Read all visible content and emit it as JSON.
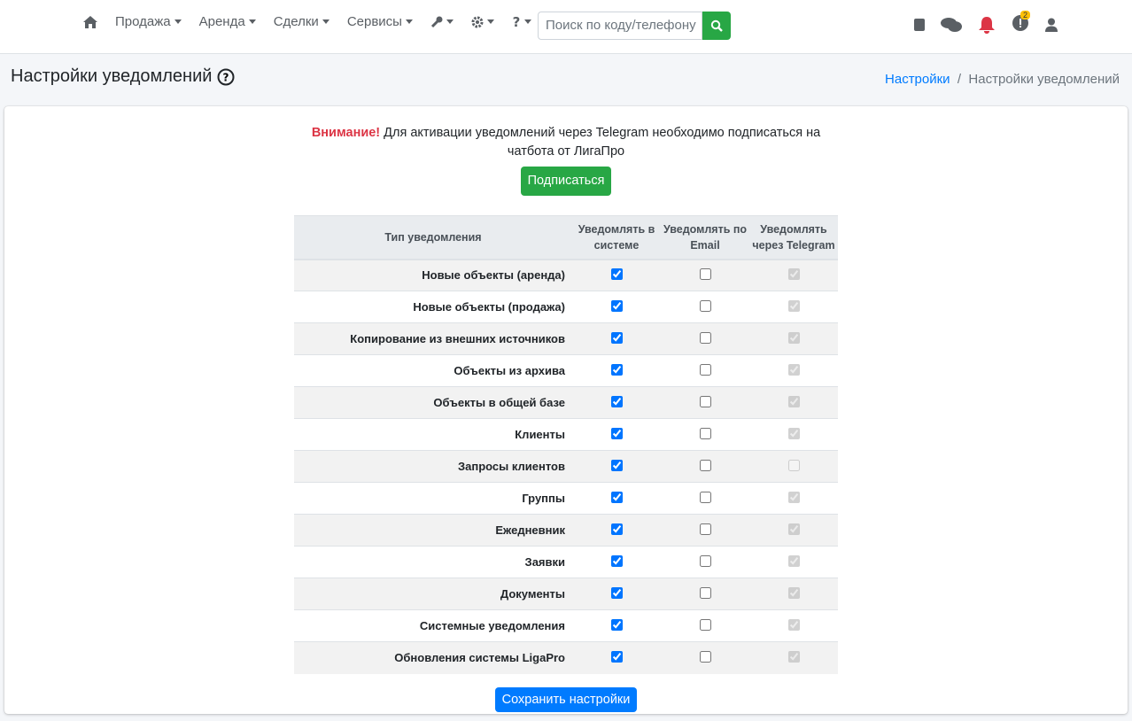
{
  "nav": {
    "items": [
      "Продажа",
      "Аренда",
      "Сделки",
      "Сервисы"
    ],
    "search_placeholder": "Поиск по коду/телефону",
    "badge": "2"
  },
  "header": {
    "title": "Настройки уведомлений",
    "breadcrumb": [
      "Настройки",
      "Настройки уведомлений"
    ]
  },
  "notice": {
    "strong": "Внимание!",
    "text": "Для активации уведомлений через Telegram необходимо подписаться на чатбота от ЛигаПро",
    "button": "Подписаться"
  },
  "table": {
    "columns": [
      "Тип уведомления",
      "Уведомлять в системе",
      "Уведомлять по Email",
      "Уведомлять через Telegram"
    ],
    "rows": [
      {
        "label": "Новые объекты (аренда)",
        "system": true,
        "email": false,
        "telegram": true
      },
      {
        "label": "Новые объекты (продажа)",
        "system": true,
        "email": false,
        "telegram": true
      },
      {
        "label": "Копирование из внешних источников",
        "system": true,
        "email": false,
        "telegram": true
      },
      {
        "label": "Объекты из архива",
        "system": true,
        "email": false,
        "telegram": true
      },
      {
        "label": "Объекты в общей базе",
        "system": true,
        "email": false,
        "telegram": true
      },
      {
        "label": "Клиенты",
        "system": true,
        "email": false,
        "telegram": true
      },
      {
        "label": "Запросы клиентов",
        "system": true,
        "email": false,
        "telegram": false
      },
      {
        "label": "Группы",
        "system": true,
        "email": false,
        "telegram": true
      },
      {
        "label": "Ежедневник",
        "system": true,
        "email": false,
        "telegram": true
      },
      {
        "label": "Заявки",
        "system": true,
        "email": false,
        "telegram": true
      },
      {
        "label": "Документы",
        "system": true,
        "email": false,
        "telegram": true
      },
      {
        "label": "Системные уведомления",
        "system": true,
        "email": false,
        "telegram": true
      },
      {
        "label": "Обновления системы LigaPro",
        "system": true,
        "email": false,
        "telegram": true
      }
    ]
  },
  "save_button": "Сохранить настройки"
}
